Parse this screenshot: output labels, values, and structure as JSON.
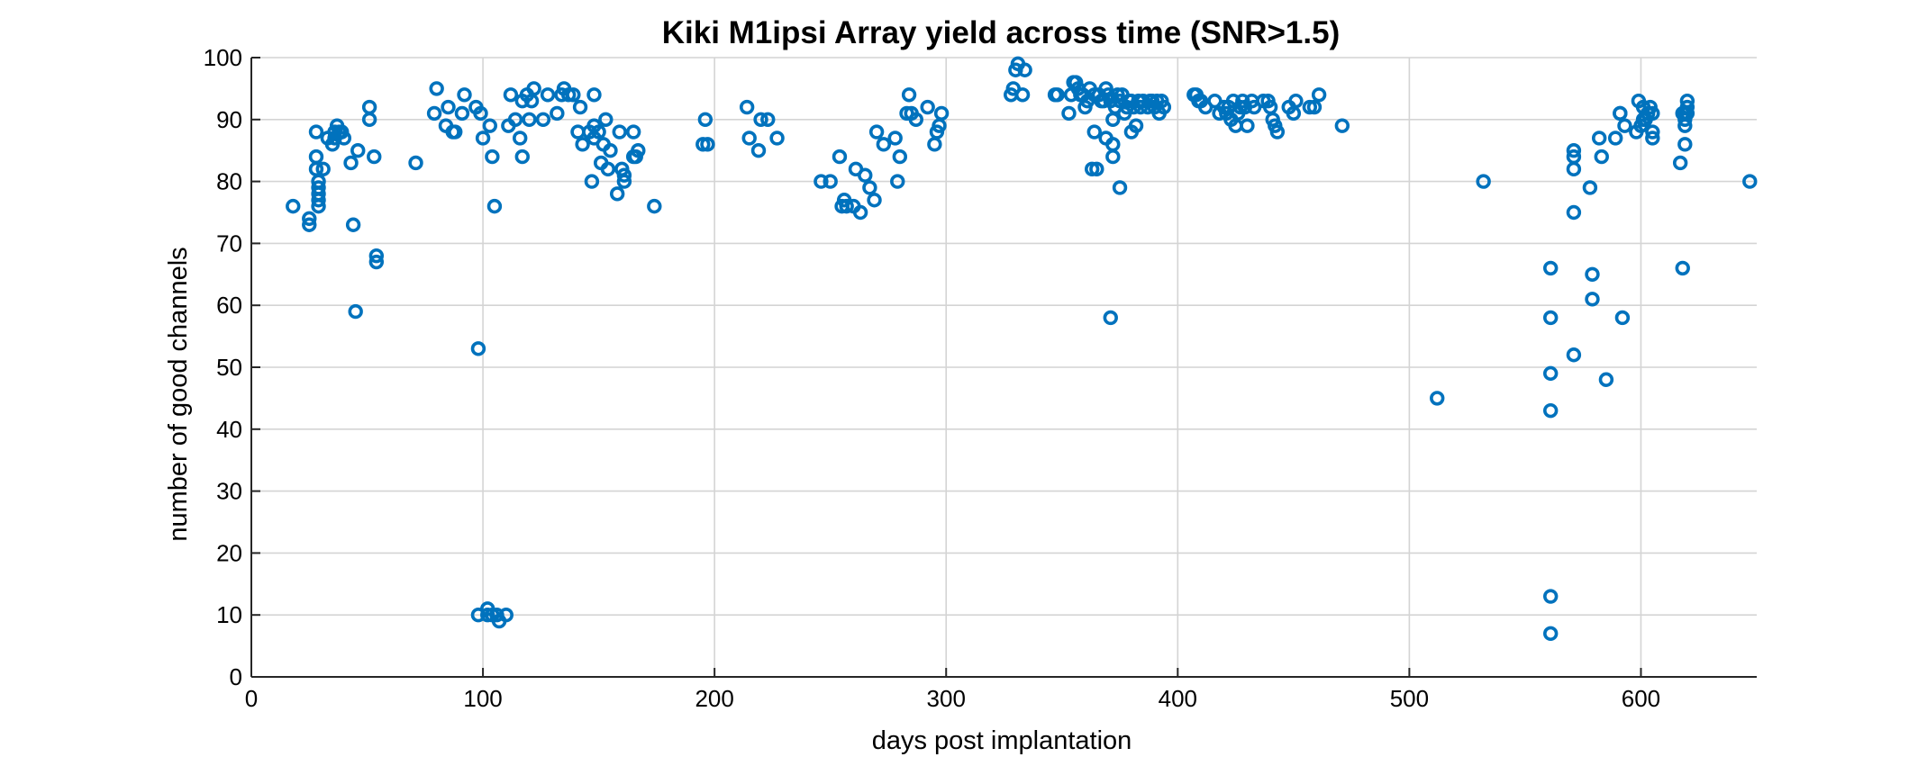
{
  "chart_data": {
    "type": "scatter",
    "title": "Kiki M1ipsi Array yield across time (SNR>1.5)",
    "xlabel": "days post implantation",
    "ylabel": "number of good channels",
    "xlim": [
      0,
      650
    ],
    "ylim": [
      0,
      100
    ],
    "xticks": [
      0,
      100,
      200,
      300,
      400,
      500,
      600
    ],
    "yticks": [
      0,
      10,
      20,
      30,
      40,
      50,
      60,
      70,
      80,
      90,
      100
    ],
    "grid": true,
    "marker": "circle",
    "color": "#0072BD",
    "series": [
      {
        "points": [
          [
            18,
            76
          ],
          [
            25,
            74
          ],
          [
            25,
            73
          ],
          [
            28,
            88
          ],
          [
            28,
            84
          ],
          [
            28,
            82
          ],
          [
            29,
            80
          ],
          [
            29,
            79
          ],
          [
            29,
            78
          ],
          [
            29,
            77
          ],
          [
            29,
            76
          ],
          [
            31,
            82
          ],
          [
            33,
            87
          ],
          [
            35,
            86
          ],
          [
            36,
            88
          ],
          [
            36,
            87
          ],
          [
            37,
            89
          ],
          [
            38,
            88
          ],
          [
            39,
            88
          ],
          [
            40,
            87
          ],
          [
            43,
            83
          ],
          [
            44,
            73
          ],
          [
            45,
            59
          ],
          [
            46,
            85
          ],
          [
            51,
            92
          ],
          [
            51,
            90
          ],
          [
            53,
            84
          ],
          [
            54,
            68
          ],
          [
            54,
            67
          ],
          [
            71,
            83
          ],
          [
            79,
            91
          ],
          [
            80,
            95
          ],
          [
            84,
            89
          ],
          [
            85,
            92
          ],
          [
            87,
            88
          ],
          [
            88,
            88
          ],
          [
            91,
            91
          ],
          [
            92,
            94
          ],
          [
            97,
            92
          ],
          [
            98,
            53
          ],
          [
            98,
            10
          ],
          [
            99,
            91
          ],
          [
            100,
            87
          ],
          [
            102,
            10
          ],
          [
            102,
            11
          ],
          [
            103,
            89
          ],
          [
            104,
            84
          ],
          [
            104,
            10
          ],
          [
            105,
            76
          ],
          [
            106,
            10
          ],
          [
            107,
            9
          ],
          [
            110,
            10
          ],
          [
            111,
            89
          ],
          [
            112,
            94
          ],
          [
            114,
            90
          ],
          [
            116,
            87
          ],
          [
            117,
            93
          ],
          [
            117,
            84
          ],
          [
            119,
            94
          ],
          [
            120,
            90
          ],
          [
            121,
            93
          ],
          [
            122,
            95
          ],
          [
            126,
            90
          ],
          [
            128,
            94
          ],
          [
            132,
            91
          ],
          [
            134,
            94
          ],
          [
            135,
            95
          ],
          [
            137,
            94
          ],
          [
            139,
            94
          ],
          [
            141,
            88
          ],
          [
            142,
            92
          ],
          [
            143,
            86
          ],
          [
            146,
            88
          ],
          [
            147,
            80
          ],
          [
            148,
            94
          ],
          [
            148,
            89
          ],
          [
            148,
            87
          ],
          [
            150,
            88
          ],
          [
            151,
            83
          ],
          [
            152,
            86
          ],
          [
            153,
            90
          ],
          [
            154,
            82
          ],
          [
            155,
            85
          ],
          [
            158,
            78
          ],
          [
            159,
            88
          ],
          [
            160,
            82
          ],
          [
            161,
            81
          ],
          [
            161,
            80
          ],
          [
            165,
            88
          ],
          [
            165,
            84
          ],
          [
            166,
            84
          ],
          [
            167,
            85
          ],
          [
            174,
            76
          ],
          [
            195,
            86
          ],
          [
            196,
            90
          ],
          [
            197,
            86
          ],
          [
            214,
            92
          ],
          [
            215,
            87
          ],
          [
            219,
            85
          ],
          [
            220,
            90
          ],
          [
            223,
            90
          ],
          [
            227,
            87
          ],
          [
            246,
            80
          ],
          [
            250,
            80
          ],
          [
            254,
            84
          ],
          [
            255,
            76
          ],
          [
            256,
            77
          ],
          [
            257,
            76
          ],
          [
            260,
            76
          ],
          [
            261,
            82
          ],
          [
            263,
            75
          ],
          [
            265,
            81
          ],
          [
            267,
            79
          ],
          [
            269,
            77
          ],
          [
            270,
            88
          ],
          [
            273,
            86
          ],
          [
            278,
            87
          ],
          [
            279,
            80
          ],
          [
            280,
            84
          ],
          [
            283,
            91
          ],
          [
            284,
            94
          ],
          [
            285,
            91
          ],
          [
            287,
            90
          ],
          [
            292,
            92
          ],
          [
            295,
            86
          ],
          [
            296,
            88
          ],
          [
            297,
            89
          ],
          [
            298,
            91
          ],
          [
            328,
            94
          ],
          [
            329,
            95
          ],
          [
            330,
            98
          ],
          [
            331,
            99
          ],
          [
            333,
            94
          ],
          [
            334,
            98
          ],
          [
            347,
            94
          ],
          [
            348,
            94
          ],
          [
            353,
            91
          ],
          [
            354,
            94
          ],
          [
            355,
            96
          ],
          [
            356,
            96
          ],
          [
            357,
            95
          ],
          [
            358,
            94
          ],
          [
            359,
            94
          ],
          [
            360,
            92
          ],
          [
            361,
            93
          ],
          [
            362,
            95
          ],
          [
            363,
            82
          ],
          [
            364,
            94
          ],
          [
            364,
            88
          ],
          [
            365,
            82
          ],
          [
            366,
            94
          ],
          [
            367,
            93
          ],
          [
            368,
            93
          ],
          [
            369,
            87
          ],
          [
            369,
            95
          ],
          [
            370,
            94
          ],
          [
            371,
            93
          ],
          [
            371,
            58
          ],
          [
            372,
            90
          ],
          [
            372,
            86
          ],
          [
            372,
            84
          ],
          [
            373,
            92
          ],
          [
            374,
            94
          ],
          [
            375,
            93
          ],
          [
            375,
            79
          ],
          [
            376,
            94
          ],
          [
            377,
            91
          ],
          [
            378,
            92
          ],
          [
            379,
            93
          ],
          [
            380,
            93
          ],
          [
            380,
            88
          ],
          [
            381,
            92
          ],
          [
            382,
            89
          ],
          [
            383,
            93
          ],
          [
            384,
            92
          ],
          [
            385,
            93
          ],
          [
            387,
            92
          ],
          [
            388,
            93
          ],
          [
            389,
            93
          ],
          [
            390,
            92
          ],
          [
            391,
            93
          ],
          [
            392,
            91
          ],
          [
            393,
            93
          ],
          [
            394,
            92
          ],
          [
            407,
            94
          ],
          [
            408,
            94
          ],
          [
            409,
            93
          ],
          [
            410,
            93
          ],
          [
            412,
            92
          ],
          [
            416,
            93
          ],
          [
            418,
            91
          ],
          [
            420,
            92
          ],
          [
            421,
            91
          ],
          [
            422,
            92
          ],
          [
            423,
            90
          ],
          [
            424,
            93
          ],
          [
            425,
            89
          ],
          [
            426,
            91
          ],
          [
            427,
            92
          ],
          [
            428,
            93
          ],
          [
            429,
            92
          ],
          [
            430,
            89
          ],
          [
            432,
            93
          ],
          [
            433,
            92
          ],
          [
            437,
            93
          ],
          [
            439,
            93
          ],
          [
            440,
            92
          ],
          [
            441,
            90
          ],
          [
            442,
            89
          ],
          [
            443,
            88
          ],
          [
            448,
            92
          ],
          [
            450,
            91
          ],
          [
            451,
            93
          ],
          [
            457,
            92
          ],
          [
            459,
            92
          ],
          [
            461,
            94
          ],
          [
            471,
            89
          ],
          [
            512,
            45
          ],
          [
            532,
            80
          ],
          [
            561,
            66
          ],
          [
            561,
            58
          ],
          [
            561,
            49
          ],
          [
            561,
            43
          ],
          [
            561,
            13
          ],
          [
            561,
            7
          ],
          [
            571,
            85
          ],
          [
            571,
            84
          ],
          [
            571,
            82
          ],
          [
            571,
            75
          ],
          [
            571,
            52
          ],
          [
            578,
            79
          ],
          [
            579,
            65
          ],
          [
            579,
            61
          ],
          [
            582,
            87
          ],
          [
            583,
            84
          ],
          [
            585,
            48
          ],
          [
            589,
            87
          ],
          [
            591,
            91
          ],
          [
            591,
            91
          ],
          [
            592,
            58
          ],
          [
            593,
            89
          ],
          [
            598,
            88
          ],
          [
            599,
            93
          ],
          [
            600,
            89
          ],
          [
            601,
            92
          ],
          [
            601,
            90
          ],
          [
            602,
            90
          ],
          [
            603,
            91
          ],
          [
            604,
            92
          ],
          [
            605,
            88
          ],
          [
            605,
            87
          ],
          [
            605,
            91
          ],
          [
            617,
            83
          ],
          [
            618,
            91
          ],
          [
            618,
            66
          ],
          [
            619,
            86
          ],
          [
            619,
            89
          ],
          [
            619,
            90
          ],
          [
            619,
            91
          ],
          [
            620,
            93
          ],
          [
            620,
            92
          ],
          [
            620,
            91
          ],
          [
            647,
            80
          ]
        ]
      }
    ]
  }
}
